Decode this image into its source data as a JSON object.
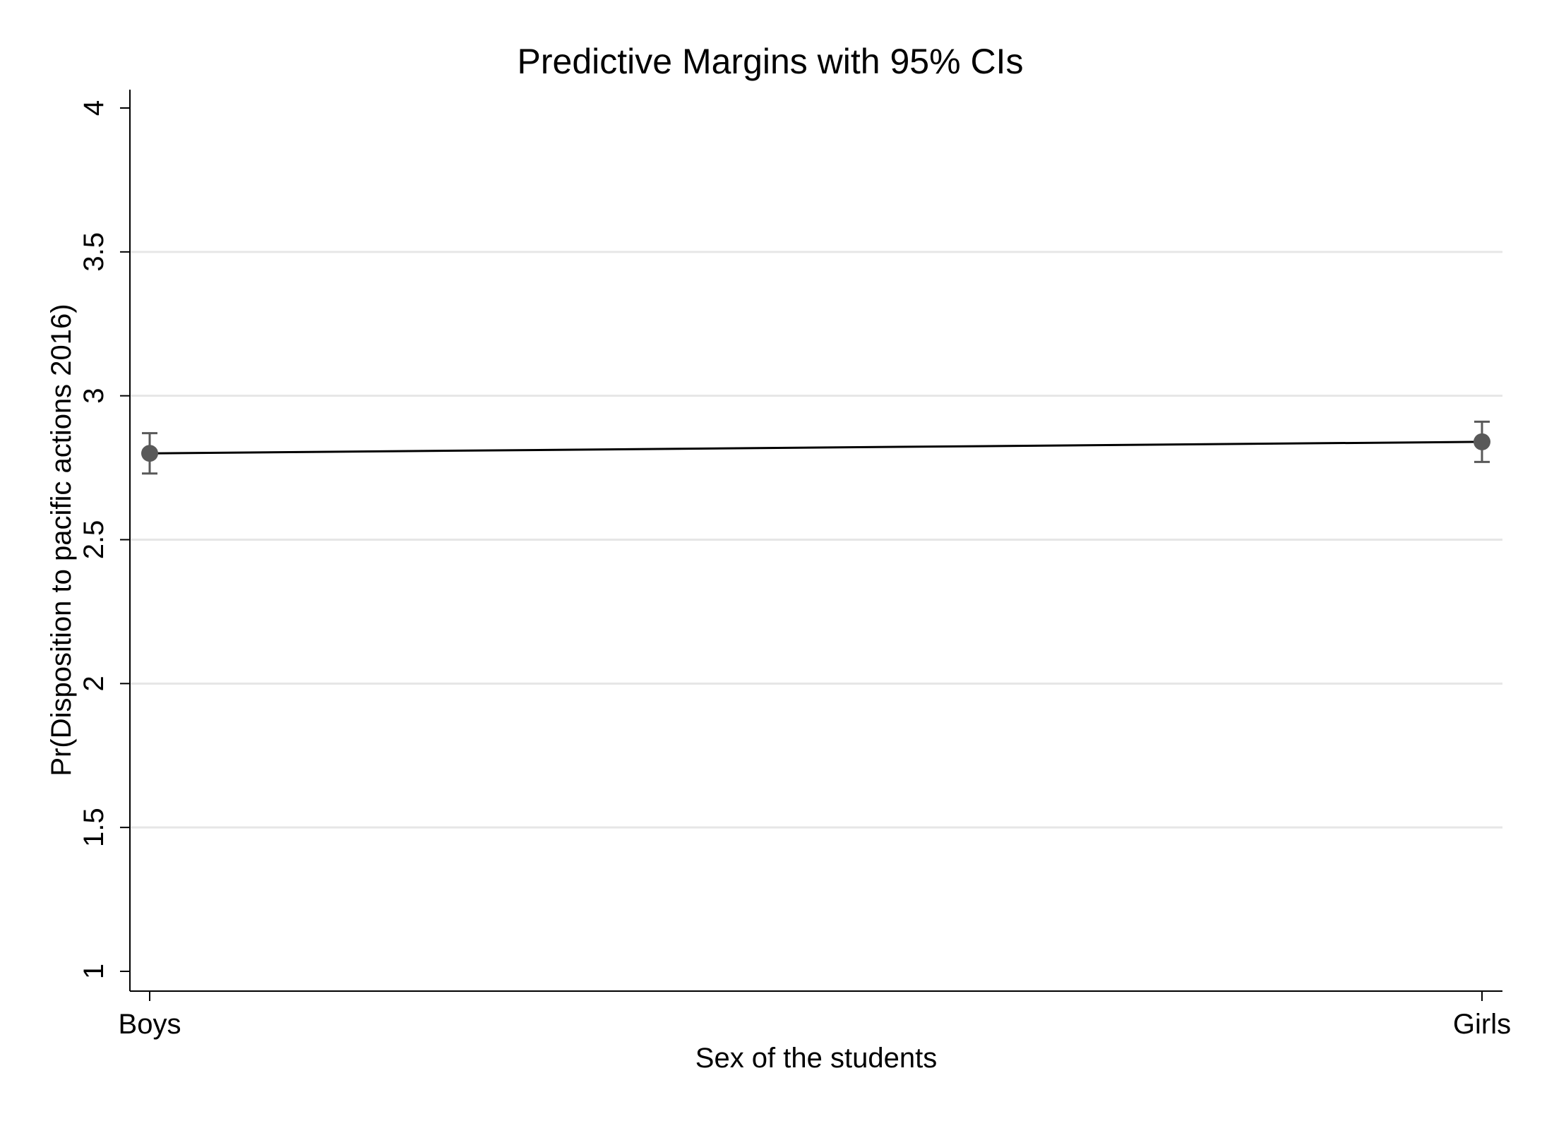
{
  "chart_data": {
    "type": "line",
    "title": "Predictive Margins with 95% CIs",
    "xlabel": "Sex of the students",
    "ylabel": "Pr(Disposition to pacific actions 2016)",
    "categories": [
      "Boys",
      "Girls"
    ],
    "series": [
      {
        "values": [
          2.8,
          2.84
        ],
        "ci_lower": [
          2.73,
          2.77
        ],
        "ci_upper": [
          2.87,
          2.91
        ]
      }
    ],
    "ylim": [
      1,
      4
    ],
    "yticks": [
      1,
      1.5,
      2,
      2.5,
      3,
      3.5,
      4
    ],
    "ytick_labels": [
      "1",
      "1.5",
      "2",
      "2.5",
      "3",
      "3.5",
      "4"
    ],
    "grid": true,
    "legend": "none",
    "colors": {
      "line": "#000000",
      "marker": "#595959",
      "ci": "#595959",
      "grid": "#e6e6e6",
      "axis": "#000000"
    }
  }
}
